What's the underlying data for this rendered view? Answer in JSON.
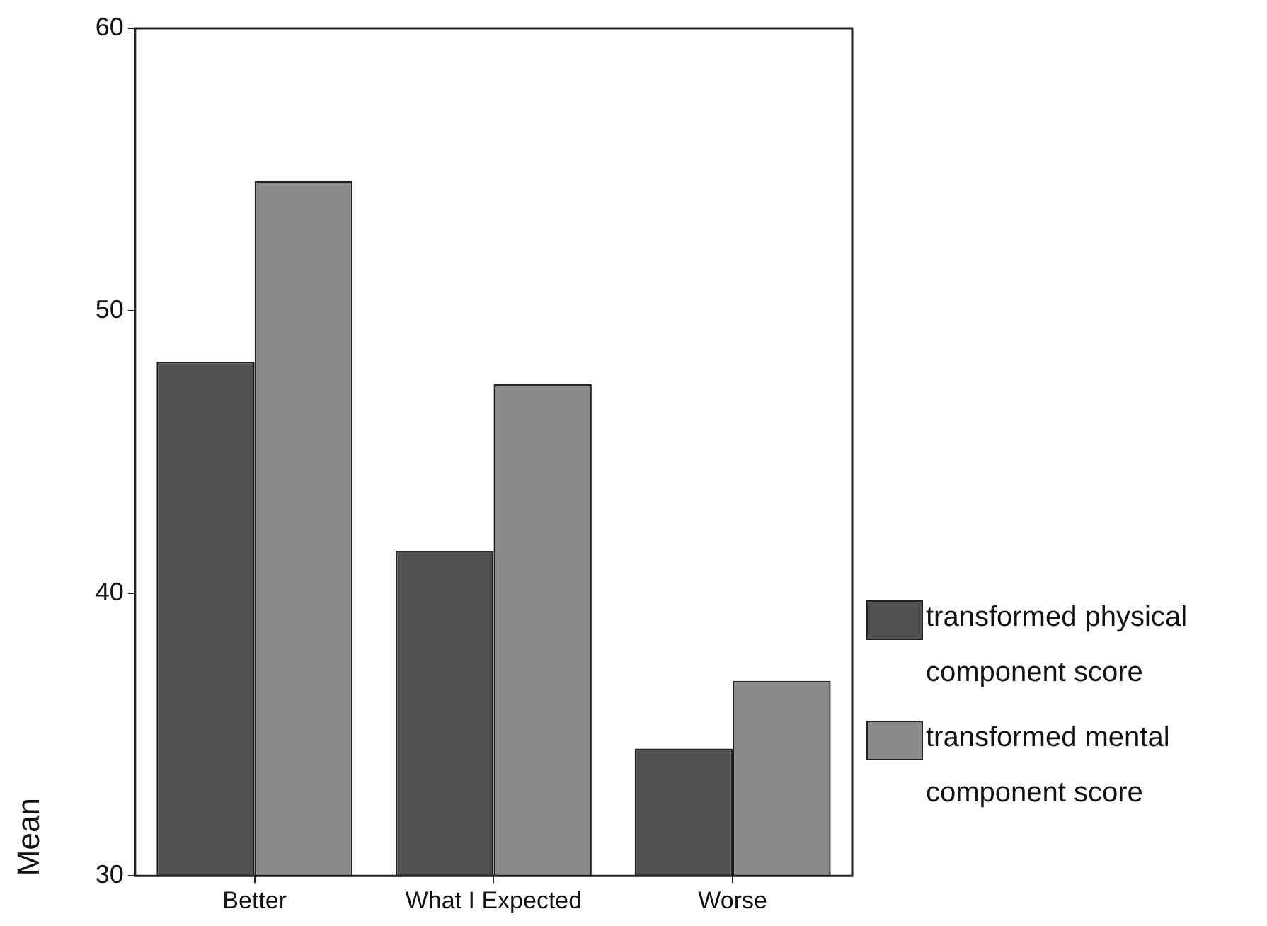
{
  "chart_data": {
    "type": "bar",
    "ylabel": "Mean",
    "categories": [
      "Better",
      "What I Expected",
      "Worse"
    ],
    "series": [
      {
        "name": "transformed physical component score",
        "color": "#505050",
        "values": [
          48.2,
          41.5,
          34.5
        ]
      },
      {
        "name": "transformed mental component score",
        "color": "#8a8a8a",
        "values": [
          54.6,
          47.4,
          36.9
        ]
      }
    ],
    "ylim": [
      30,
      60
    ],
    "yticks": [
      30,
      40,
      50,
      60
    ],
    "legend": "right"
  }
}
